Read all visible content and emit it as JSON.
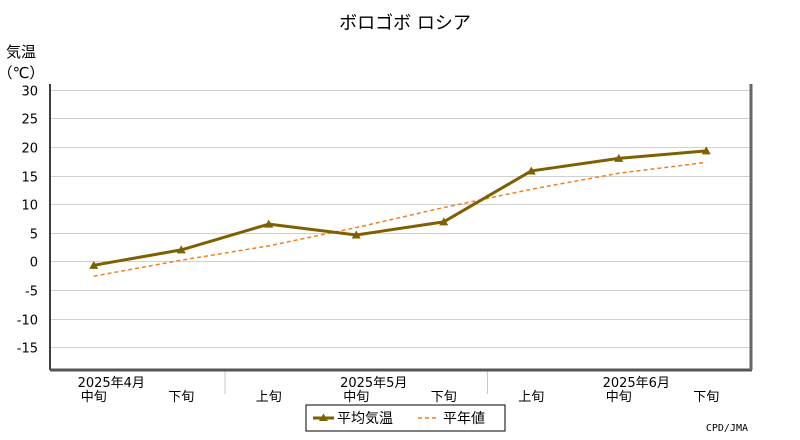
{
  "chart_data": {
    "type": "line",
    "title": "ボロゴボ ロシア",
    "ylabel_line1": "気温",
    "ylabel_line2": "（℃）",
    "ylim": [
      -19,
      31
    ],
    "yticks": [
      30,
      25,
      20,
      15,
      10,
      5,
      0,
      -5,
      -10,
      -15
    ],
    "grid": true,
    "x": [
      "2025年4月 中旬",
      "2025年4月 下旬",
      "2025年5月 上旬",
      "2025年5月 中旬",
      "2025年5月 下旬",
      "2025年6月 上旬",
      "2025年6月 中旬",
      "2025年6月 下旬"
    ],
    "x_sub_labels": [
      "中旬",
      "下旬",
      "上旬",
      "中旬",
      "下旬",
      "上旬",
      "中旬",
      "下旬"
    ],
    "x_month_labels": [
      "2025年4月",
      "2025年5月",
      "2025年6月"
    ],
    "series": [
      {
        "name": "平均気温",
        "values": [
          -0.7,
          2.0,
          6.5,
          4.6,
          6.9,
          15.8,
          18.0,
          19.3
        ],
        "color": "#7f6000",
        "style": "solid",
        "marker": "triangle"
      },
      {
        "name": "平年値",
        "values": [
          -2.6,
          0.2,
          2.7,
          5.9,
          9.4,
          12.6,
          15.4,
          17.3
        ],
        "color": "#f07f1e",
        "style": "dashed"
      }
    ],
    "legend": "bottom-center",
    "credit": "CPD/JMA"
  }
}
